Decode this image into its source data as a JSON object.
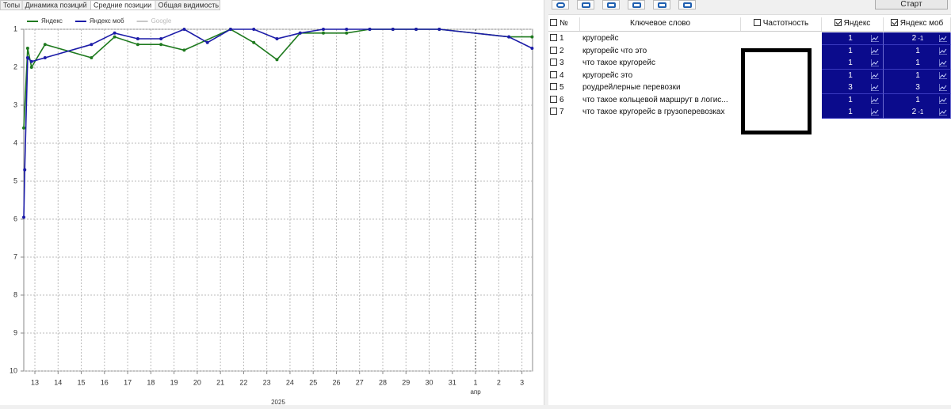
{
  "tabs": {
    "items": [
      "Топы",
      "Динамика позиций",
      "Средние позиции",
      "Общая видимость"
    ],
    "active": 2
  },
  "chart_data": {
    "type": "line",
    "xlim": [
      "2025-03-12T12:30",
      "2025-04-03T11:00"
    ],
    "xticks": [
      {
        "value": "2025-03-13T00:00",
        "label": "13"
      },
      {
        "value": "2025-03-14T00:00",
        "label": "14"
      },
      {
        "value": "2025-03-15T00:00",
        "label": "15"
      },
      {
        "value": "2025-03-16T00:00",
        "label": "16"
      },
      {
        "value": "2025-03-17T00:00",
        "label": "17"
      },
      {
        "value": "2025-03-18T00:00",
        "label": "18"
      },
      {
        "value": "2025-03-19T00:00",
        "label": "19"
      },
      {
        "value": "2025-03-20T00:00",
        "label": "20"
      },
      {
        "value": "2025-03-21T00:00",
        "label": "21"
      },
      {
        "value": "2025-03-22T00:00",
        "label": "22"
      },
      {
        "value": "2025-03-23T00:00",
        "label": "23"
      },
      {
        "value": "2025-03-24T00:00",
        "label": "24"
      },
      {
        "value": "2025-03-25T00:00",
        "label": "25"
      },
      {
        "value": "2025-03-26T00:00",
        "label": "26"
      },
      {
        "value": "2025-03-27T00:00",
        "label": "27"
      },
      {
        "value": "2025-03-28T00:00",
        "label": "28"
      },
      {
        "value": "2025-03-29T00:00",
        "label": "29"
      },
      {
        "value": "2025-03-30T00:00",
        "label": "30"
      },
      {
        "value": "2025-03-31T00:00",
        "label": "31"
      },
      {
        "value": "2025-04-01T00:00",
        "label": "1"
      },
      {
        "value": "2025-04-02T00:00",
        "label": "2"
      },
      {
        "value": "2025-04-03T00:00",
        "label": "3"
      }
    ],
    "x_month_label": {
      "value": "2025-04-01T00:00",
      "label": "апр"
    },
    "x_year_label": "2025",
    "ylim": [
      10,
      1
    ],
    "yticks": [
      1,
      2,
      3,
      4,
      5,
      6,
      7,
      8,
      9,
      10
    ],
    "grid": true,
    "legend": "top-left",
    "series": [
      {
        "name": "Яндекс",
        "color": "#1f7a1f",
        "x": [
          "2025-03-12T12:30",
          "2025-03-12T16:30",
          "2025-03-12T20:30",
          "2025-03-13T10:30",
          "2025-03-15T10:30",
          "2025-03-16T10:30",
          "2025-03-17T10:30",
          "2025-03-18T10:30",
          "2025-03-19T10:30",
          "2025-03-21T10:30",
          "2025-03-22T10:30",
          "2025-03-23T10:30",
          "2025-03-24T10:30",
          "2025-03-25T10:30",
          "2025-03-26T10:30",
          "2025-03-27T10:30",
          "2025-03-28T10:30",
          "2025-03-29T10:30",
          "2025-03-30T10:30",
          "2025-04-02T10:30",
          "2025-04-03T10:30"
        ],
        "values": [
          3.6,
          1.5,
          2.0,
          1.4,
          1.75,
          1.2,
          1.4,
          1.4,
          1.55,
          1.0,
          1.35,
          1.8,
          1.1,
          1.1,
          1.1,
          1.0,
          1.0,
          1.0,
          1.0,
          1.2,
          1.2
        ]
      },
      {
        "name": "Яндекс моб",
        "color": "#1c1ca8",
        "x": [
          "2025-03-12T12:30",
          "2025-03-12T13:30",
          "2025-03-12T16:30",
          "2025-03-12T20:30",
          "2025-03-13T10:30",
          "2025-03-15T10:30",
          "2025-03-16T10:30",
          "2025-03-17T10:30",
          "2025-03-18T10:30",
          "2025-03-19T10:30",
          "2025-03-20T10:30",
          "2025-03-21T10:30",
          "2025-03-22T10:30",
          "2025-03-23T10:30",
          "2025-03-24T10:30",
          "2025-03-25T10:30",
          "2025-03-26T10:30",
          "2025-03-27T10:30",
          "2025-03-28T10:30",
          "2025-03-29T10:30",
          "2025-03-30T10:30",
          "2025-04-02T10:30",
          "2025-04-03T10:30"
        ],
        "values": [
          5.95,
          4.7,
          1.75,
          1.85,
          1.75,
          1.4,
          1.1,
          1.25,
          1.25,
          1.0,
          1.35,
          1.0,
          1.0,
          1.25,
          1.1,
          1.0,
          1.0,
          1.0,
          1.0,
          1.0,
          1.0,
          1.2,
          1.5
        ]
      },
      {
        "name": "Google",
        "color": "#c8c8c8",
        "x": [],
        "values": []
      }
    ]
  },
  "toolbar": {
    "start_button": "Старт"
  },
  "table": {
    "columns": [
      "№",
      "Ключевое слово",
      "Частотность",
      "Яндекс",
      "Яндекс моб"
    ],
    "rows": [
      {
        "n": 1,
        "keyword": "кругорейс",
        "yandex": 1,
        "yandex_mob": 2,
        "yandex_mob_change": -1
      },
      {
        "n": 2,
        "keyword": "кругорейс что это",
        "yandex": 1,
        "yandex_mob": 1
      },
      {
        "n": 3,
        "keyword": "что такое кругорейс",
        "yandex": 1,
        "yandex_mob": 1
      },
      {
        "n": 4,
        "keyword": "кругорейс это",
        "yandex": 1,
        "yandex_mob": 1
      },
      {
        "n": 5,
        "keyword": "роудрейлерные перевозки",
        "yandex": 3,
        "yandex_mob": 3
      },
      {
        "n": 6,
        "keyword": "что такое кольцевой маршрут в логис...",
        "yandex": 1,
        "yandex_mob": 1
      },
      {
        "n": 7,
        "keyword": "что такое кругорейс в грузоперевозках",
        "yandex": 1,
        "yandex_mob": 2,
        "yandex_mob_change": -1
      }
    ]
  }
}
